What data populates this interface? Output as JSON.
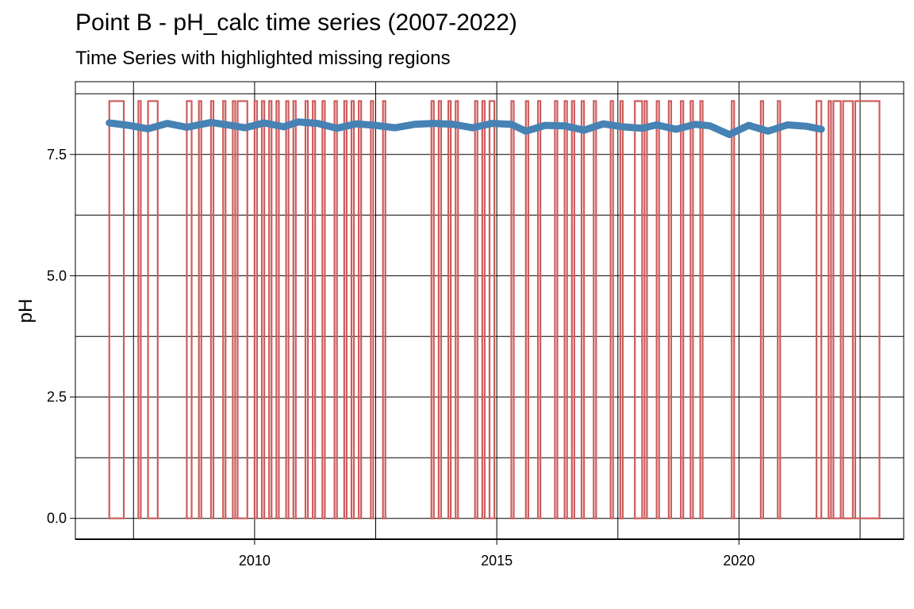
{
  "chart_data": {
    "type": "line",
    "title": "Point B - pH_calc time series (2007-2022)",
    "subtitle": "Time Series with highlighted missing regions",
    "xlabel": "",
    "ylabel": "pH",
    "xlim": [
      2006.3,
      2023.4
    ],
    "ylim": [
      -0.43,
      9.0
    ],
    "x_ticks": [
      2010,
      2015,
      2020
    ],
    "x_tick_labels": [
      "2010",
      "2015",
      "2020"
    ],
    "y_ticks": [
      0.0,
      2.5,
      5.0,
      7.5
    ],
    "y_tick_labels": [
      "0.0",
      "2.5",
      "5.0",
      "7.5"
    ],
    "grid": true,
    "legend": "none",
    "colors": {
      "series": "#4682b4",
      "missing": "#cd5c5c",
      "grid": "#000000"
    },
    "series": [
      {
        "x": [
          2007.0,
          2007.4,
          2007.8,
          2008.2,
          2008.6,
          2009.1,
          2009.5,
          2009.8,
          2010.2,
          2010.6,
          2010.9,
          2011.3,
          2011.7,
          2012.1,
          2012.5,
          2012.9,
          2013.3,
          2013.7,
          2014.1,
          2014.5,
          2014.9,
          2015.3,
          2015.6,
          2016.0,
          2016.4,
          2016.8,
          2017.2,
          2017.6,
          2018.0,
          2018.3,
          2018.7,
          2019.1,
          2019.4,
          2019.8,
          2020.2,
          2020.6,
          2021.0,
          2021.4,
          2021.7
        ],
        "values": [
          8.15,
          8.1,
          8.03,
          8.14,
          8.06,
          8.16,
          8.1,
          8.05,
          8.15,
          8.07,
          8.17,
          8.14,
          8.04,
          8.13,
          8.1,
          8.05,
          8.12,
          8.14,
          8.12,
          8.05,
          8.14,
          8.12,
          7.98,
          8.1,
          8.09,
          8.0,
          8.13,
          8.07,
          8.04,
          8.11,
          8.02,
          8.12,
          8.09,
          7.91,
          8.1,
          7.98,
          8.11,
          8.08,
          8.02
        ]
      }
    ],
    "missing_regions": [
      [
        2007.0,
        2007.3
      ],
      [
        2007.6,
        2007.65
      ],
      [
        2007.8,
        2008.0
      ],
      [
        2008.6,
        2008.7
      ],
      [
        2008.85,
        2008.9
      ],
      [
        2009.1,
        2009.15
      ],
      [
        2009.35,
        2009.4
      ],
      [
        2009.55,
        2009.6
      ],
      [
        2009.65,
        2009.85
      ],
      [
        2010.0,
        2010.05
      ],
      [
        2010.15,
        2010.2
      ],
      [
        2010.3,
        2010.35
      ],
      [
        2010.45,
        2010.5
      ],
      [
        2010.65,
        2010.7
      ],
      [
        2010.8,
        2010.85
      ],
      [
        2011.05,
        2011.1
      ],
      [
        2011.2,
        2011.25
      ],
      [
        2011.4,
        2011.45
      ],
      [
        2011.65,
        2011.7
      ],
      [
        2011.85,
        2011.9
      ],
      [
        2012.0,
        2012.05
      ],
      [
        2012.15,
        2012.2
      ],
      [
        2012.4,
        2012.45
      ],
      [
        2012.65,
        2012.7
      ],
      [
        2013.65,
        2013.7
      ],
      [
        2013.8,
        2013.85
      ],
      [
        2014.0,
        2014.05
      ],
      [
        2014.15,
        2014.2
      ],
      [
        2014.55,
        2014.6
      ],
      [
        2014.7,
        2014.75
      ],
      [
        2014.85,
        2014.95
      ],
      [
        2015.3,
        2015.35
      ],
      [
        2015.6,
        2015.65
      ],
      [
        2015.85,
        2015.9
      ],
      [
        2016.2,
        2016.25
      ],
      [
        2016.4,
        2016.45
      ],
      [
        2016.55,
        2016.6
      ],
      [
        2016.75,
        2016.8
      ],
      [
        2017.0,
        2017.05
      ],
      [
        2017.35,
        2017.4
      ],
      [
        2017.55,
        2017.6
      ],
      [
        2017.85,
        2018.0
      ],
      [
        2018.05,
        2018.1
      ],
      [
        2018.3,
        2018.35
      ],
      [
        2018.55,
        2018.6
      ],
      [
        2018.8,
        2018.85
      ],
      [
        2019.0,
        2019.05
      ],
      [
        2019.2,
        2019.25
      ],
      [
        2019.85,
        2019.9
      ],
      [
        2020.45,
        2020.5
      ],
      [
        2020.8,
        2020.85
      ],
      [
        2021.6,
        2021.7
      ],
      [
        2021.85,
        2021.9
      ],
      [
        2021.95,
        2022.1
      ],
      [
        2022.15,
        2022.35
      ],
      [
        2022.4,
        2022.9
      ]
    ],
    "missing_height": 8.6
  }
}
